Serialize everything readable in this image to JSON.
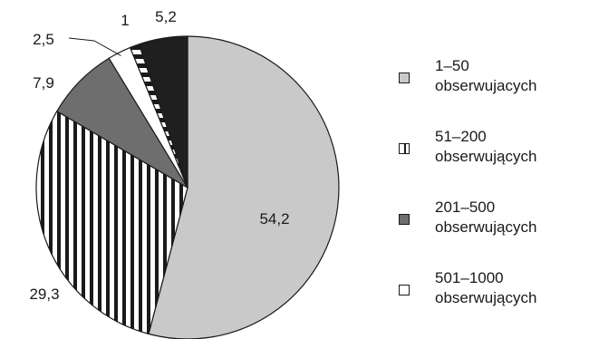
{
  "chart_data": {
    "type": "pie",
    "title": "",
    "slices": [
      {
        "label": "1–50 obserwujacych",
        "value": 54.2,
        "value_label": "54,2",
        "color": "#c9c9c9",
        "pattern": "solid"
      },
      {
        "label": "51–200 obserwujących",
        "value": 29.3,
        "value_label": "29,3",
        "color": "#ffffff",
        "pattern": "vertical-stripes"
      },
      {
        "label": "201–500 obserwujących",
        "value": 7.9,
        "value_label": "7,9",
        "color": "#6e6e6e",
        "pattern": "solid"
      },
      {
        "label": "501–1000 obserwujących",
        "value": 2.5,
        "value_label": "2,5",
        "color": "#ffffff",
        "pattern": "solid"
      },
      {
        "label": "",
        "value": 1.0,
        "value_label": "1",
        "color": "#ffffff",
        "pattern": "dashed"
      },
      {
        "label": "",
        "value": 5.2,
        "value_label": "5,2",
        "color": "#1f1f1f",
        "pattern": "solid"
      }
    ],
    "legend_position": "right"
  },
  "legend": {
    "items": [
      {
        "text": "1–50\nobserwujacych",
        "color": "#c9c9c9",
        "pattern": "solid"
      },
      {
        "text": "51–200\nobserwujących",
        "color": "#ffffff",
        "pattern": "vertical-stripes"
      },
      {
        "text": "201–500\nobserwujących",
        "color": "#6e6e6e",
        "pattern": "solid"
      },
      {
        "text": "501–1000\nobserwujących",
        "color": "#ffffff",
        "pattern": "solid"
      }
    ]
  }
}
